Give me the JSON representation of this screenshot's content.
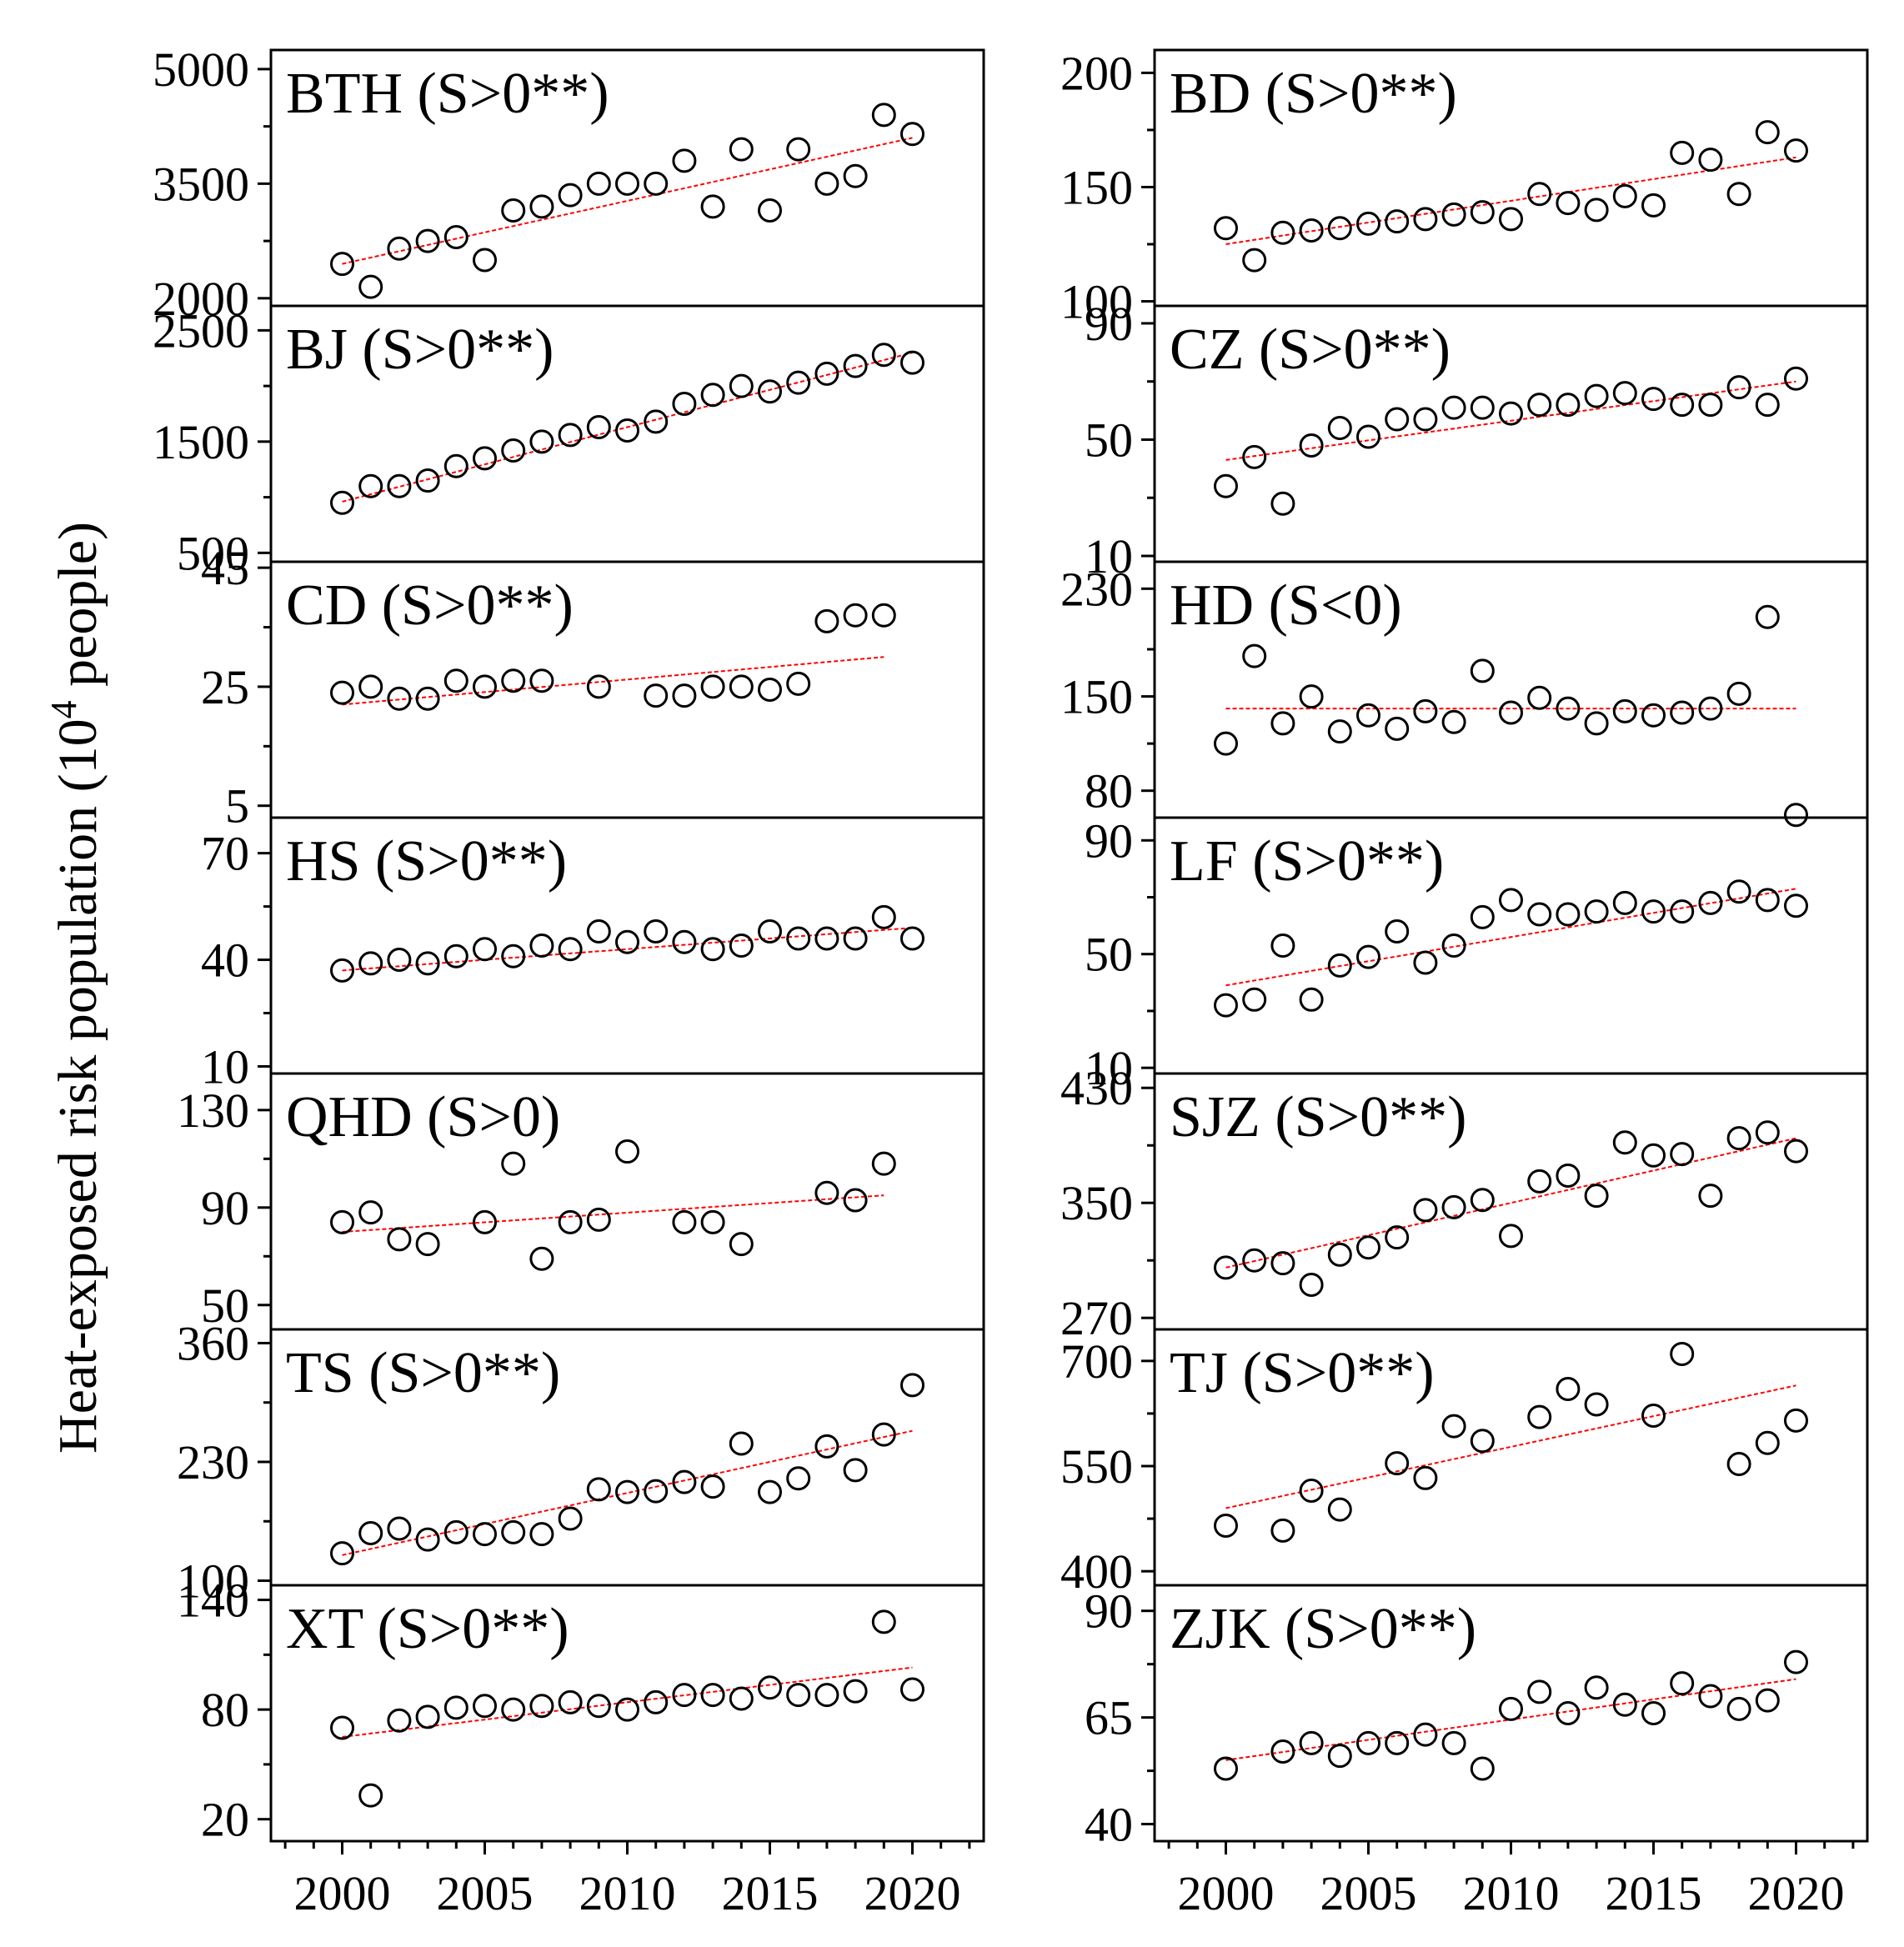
{
  "figure": {
    "ylabel_main": "Heat-exposed risk population (10",
    "ylabel_sup": "4",
    "ylabel_tail": " people)"
  },
  "colors": {
    "trend": "#ff0000",
    "marker": "#000000",
    "axis": "#000000"
  },
  "chart_data": [
    {
      "type": "scatter",
      "title": "BTH (S>0**)",
      "ylim": [
        1900,
        5250
      ],
      "yticks": [
        2000,
        3500,
        5000
      ],
      "x": [
        2000,
        2001,
        2002,
        2003,
        2004,
        2005,
        2006,
        2007,
        2008,
        2009,
        2010,
        2011,
        2012,
        2013,
        2014,
        2015,
        2016,
        2017,
        2018,
        2019,
        2020
      ],
      "y": [
        2450,
        2150,
        2650,
        2750,
        2800,
        2500,
        3150,
        3200,
        3350,
        3500,
        3500,
        3500,
        3800,
        3200,
        3950,
        3150,
        3950,
        3500,
        3600,
        4400,
        4150
      ],
      "trend": [
        [
          2000,
          2450
        ],
        [
          2020,
          4100
        ]
      ]
    },
    {
      "type": "scatter",
      "title": "BD (S>0**)",
      "ylim": [
        98,
        210
      ],
      "yticks": [
        100,
        150,
        200
      ],
      "x": [
        2000,
        2001,
        2002,
        2003,
        2004,
        2005,
        2006,
        2007,
        2008,
        2009,
        2010,
        2011,
        2012,
        2013,
        2014,
        2015,
        2016,
        2017,
        2018,
        2019,
        2020
      ],
      "y": [
        132,
        118,
        130,
        131,
        132,
        134,
        135,
        136,
        138,
        139,
        136,
        147,
        143,
        140,
        146,
        142,
        165,
        162,
        147,
        174,
        166
      ],
      "trend": [
        [
          2000,
          125
        ],
        [
          2020,
          163
        ]
      ]
    },
    {
      "type": "scatter",
      "title": "BJ (S>0**)",
      "ylim": [
        420,
        2720
      ],
      "yticks": [
        500,
        1500,
        2500
      ],
      "x": [
        2000,
        2001,
        2002,
        2003,
        2004,
        2005,
        2006,
        2007,
        2008,
        2009,
        2010,
        2011,
        2012,
        2013,
        2014,
        2015,
        2016,
        2017,
        2018,
        2019,
        2020
      ],
      "y": [
        950,
        1100,
        1100,
        1150,
        1280,
        1350,
        1420,
        1500,
        1560,
        1630,
        1600,
        1680,
        1840,
        1920,
        2000,
        1950,
        2030,
        2110,
        2180,
        2280,
        2210
      ],
      "trend": [
        [
          2000,
          960
        ],
        [
          2020,
          2300
        ]
      ]
    },
    {
      "type": "scatter",
      "title": "CZ (S>0**)",
      "ylim": [
        8,
        96
      ],
      "yticks": [
        10,
        50,
        90
      ],
      "x": [
        2000,
        2001,
        2002,
        2003,
        2004,
        2005,
        2006,
        2007,
        2008,
        2009,
        2010,
        2011,
        2012,
        2013,
        2014,
        2015,
        2016,
        2017,
        2018,
        2019,
        2020
      ],
      "y": [
        34,
        44,
        28,
        48,
        54,
        51,
        57,
        57,
        61,
        61,
        59,
        62,
        62,
        65,
        66,
        64,
        62,
        62,
        68,
        62,
        71
      ],
      "trend": [
        [
          2000,
          43
        ],
        [
          2020,
          70
        ]
      ]
    },
    {
      "type": "scatter",
      "title": "CD (S>0**)",
      "ylim": [
        3,
        46
      ],
      "yticks": [
        5,
        25,
        45
      ],
      "x": [
        2000,
        2001,
        2002,
        2003,
        2004,
        2005,
        2006,
        2007,
        2009,
        2011,
        2012,
        2013,
        2014,
        2015,
        2016,
        2017,
        2018,
        2019
      ],
      "y": [
        24,
        25,
        23,
        23,
        26,
        25,
        26,
        26,
        25,
        23.5,
        23.5,
        25,
        25,
        24.5,
        25.5,
        36,
        37,
        37
      ],
      "trend": [
        [
          2000,
          22
        ],
        [
          2019,
          30
        ]
      ]
    },
    {
      "type": "scatter",
      "title": "HD (S<0)",
      "ylim": [
        60,
        250
      ],
      "yticks": [
        80,
        150,
        230
      ],
      "x": [
        2000,
        2001,
        2002,
        2003,
        2004,
        2005,
        2006,
        2007,
        2008,
        2009,
        2010,
        2011,
        2012,
        2013,
        2014,
        2015,
        2016,
        2017,
        2018,
        2019,
        2020
      ],
      "y": [
        115,
        180,
        130,
        150,
        124,
        136,
        126,
        139,
        131,
        169,
        138,
        149,
        141,
        130,
        139,
        136,
        138,
        141,
        152,
        209,
        62
      ],
      "trend": [
        [
          2000,
          141
        ],
        [
          2020,
          141
        ]
      ]
    },
    {
      "type": "scatter",
      "title": "HS (S>0**)",
      "ylim": [
        8,
        80
      ],
      "yticks": [
        10,
        40,
        70
      ],
      "x": [
        2000,
        2001,
        2002,
        2003,
        2004,
        2005,
        2006,
        2007,
        2008,
        2009,
        2010,
        2011,
        2012,
        2013,
        2014,
        2015,
        2016,
        2017,
        2018,
        2019,
        2020
      ],
      "y": [
        37,
        39,
        40,
        39,
        41,
        43,
        41,
        44,
        43,
        48,
        45,
        48,
        45,
        43,
        44,
        48,
        46,
        46,
        46,
        52,
        46
      ],
      "trend": [
        [
          2000,
          37
        ],
        [
          2020,
          49
        ]
      ]
    },
    {
      "type": "scatter",
      "title": "LF (S>0**)",
      "ylim": [
        8,
        98
      ],
      "yticks": [
        10,
        50,
        90
      ],
      "x": [
        2000,
        2001,
        2002,
        2003,
        2004,
        2005,
        2006,
        2007,
        2008,
        2009,
        2010,
        2011,
        2012,
        2013,
        2014,
        2015,
        2016,
        2017,
        2018,
        2019,
        2020
      ],
      "y": [
        32,
        34,
        53,
        34,
        46,
        49,
        58,
        47,
        53,
        63,
        69,
        64,
        64,
        65,
        68,
        65,
        65,
        68,
        72,
        69,
        67
      ],
      "trend": [
        [
          2000,
          39
        ],
        [
          2020,
          73
        ]
      ]
    },
    {
      "type": "scatter",
      "title": "QHD (S>0)",
      "ylim": [
        40,
        145
      ],
      "yticks": [
        50,
        90,
        130
      ],
      "x": [
        2000,
        2001,
        2002,
        2003,
        2005,
        2006,
        2007,
        2008,
        2009,
        2010,
        2012,
        2013,
        2014,
        2017,
        2018,
        2019
      ],
      "y": [
        84,
        88,
        77,
        75,
        84,
        108,
        69,
        84,
        85,
        113,
        84,
        84,
        75,
        96,
        93,
        108
      ],
      "trend": [
        [
          2000,
          80
        ],
        [
          2019,
          95
        ]
      ]
    },
    {
      "type": "scatter",
      "title": "SJZ (S>0**)",
      "ylim": [
        262,
        440
      ],
      "yticks": [
        270,
        350,
        430
      ],
      "x": [
        2000,
        2001,
        2002,
        2003,
        2004,
        2005,
        2006,
        2007,
        2008,
        2009,
        2010,
        2011,
        2012,
        2013,
        2014,
        2015,
        2016,
        2017,
        2018,
        2019,
        2020
      ],
      "y": [
        305,
        310,
        308,
        293,
        314,
        319,
        326,
        345,
        347,
        352,
        327,
        365,
        369,
        355,
        392,
        383,
        384,
        355,
        395,
        399,
        386
      ],
      "trend": [
        [
          2000,
          305
        ],
        [
          2020,
          395
        ]
      ]
    },
    {
      "type": "scatter",
      "title": "TS (S>0**)",
      "ylim": [
        95,
        375
      ],
      "yticks": [
        100,
        230,
        360
      ],
      "x": [
        2000,
        2001,
        2002,
        2003,
        2004,
        2005,
        2006,
        2007,
        2008,
        2009,
        2010,
        2011,
        2012,
        2013,
        2014,
        2015,
        2016,
        2017,
        2018,
        2019,
        2020
      ],
      "y": [
        130,
        152,
        157,
        145,
        153,
        151,
        153,
        151,
        168,
        200,
        197,
        198,
        208,
        203,
        250,
        197,
        212,
        247,
        221,
        260,
        314
      ],
      "trend": [
        [
          2000,
          128
        ],
        [
          2020,
          264
        ]
      ]
    },
    {
      "type": "scatter",
      "title": "TJ (S>0**)",
      "ylim": [
        380,
        745
      ],
      "yticks": [
        400,
        550,
        700
      ],
      "x": [
        2000,
        2002,
        2003,
        2004,
        2006,
        2007,
        2008,
        2009,
        2011,
        2012,
        2013,
        2015,
        2016,
        2018,
        2019,
        2020
      ],
      "y": [
        465,
        458,
        515,
        488,
        554,
        533,
        607,
        586,
        620,
        660,
        638,
        622,
        710,
        553,
        583,
        615
      ],
      "trend": [
        [
          2000,
          490
        ],
        [
          2020,
          665
        ]
      ]
    },
    {
      "type": "scatter",
      "title": "XT (S>0**)",
      "ylim": [
        8,
        148
      ],
      "yticks": [
        20,
        80,
        140
      ],
      "x": [
        2000,
        2001,
        2002,
        2003,
        2004,
        2005,
        2006,
        2007,
        2008,
        2009,
        2010,
        2011,
        2012,
        2013,
        2014,
        2015,
        2016,
        2017,
        2018,
        2019,
        2020
      ],
      "y": [
        70,
        33,
        74,
        76,
        81,
        82,
        80,
        82,
        84,
        82,
        80,
        84,
        88,
        88,
        86,
        92,
        88,
        88,
        90,
        128,
        91
      ],
      "trend": [
        [
          2000,
          65
        ],
        [
          2020,
          103
        ]
      ]
    },
    {
      "type": "scatter",
      "title": "ZJK (S>0**)",
      "ylim": [
        36,
        96
      ],
      "yticks": [
        40,
        65,
        90
      ],
      "x": [
        2000,
        2002,
        2003,
        2004,
        2005,
        2006,
        2007,
        2008,
        2009,
        2010,
        2011,
        2012,
        2013,
        2014,
        2015,
        2016,
        2017,
        2018,
        2019,
        2020
      ],
      "y": [
        53,
        57,
        59,
        56,
        59,
        59,
        61,
        59,
        53,
        67,
        71,
        66,
        72,
        68,
        66,
        73,
        70,
        67,
        69,
        78
      ],
      "trend": [
        [
          2000,
          55
        ],
        [
          2020,
          74
        ]
      ]
    }
  ],
  "xaxis": {
    "ticks": [
      2000,
      2005,
      2010,
      2015,
      2020
    ],
    "tick_labels": [
      "2000",
      "2005",
      "2010",
      "2015",
      "2020"
    ],
    "xlim": [
      1997.5,
      2022.5
    ]
  }
}
